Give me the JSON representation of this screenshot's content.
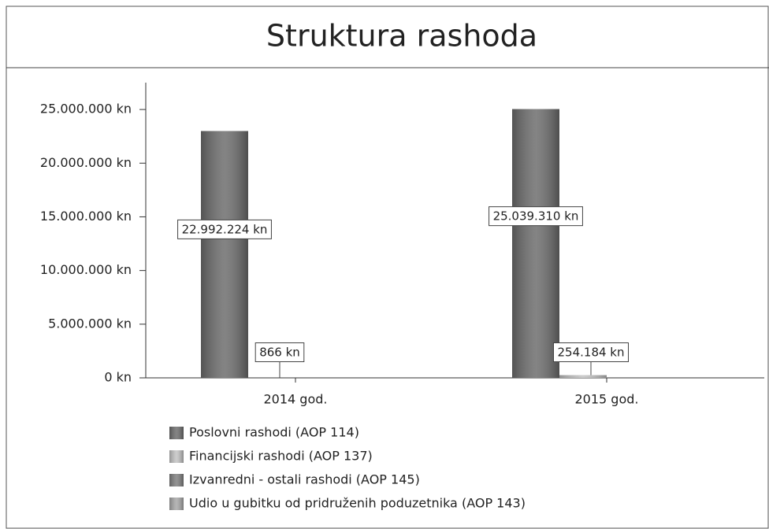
{
  "chart_data": {
    "type": "bar",
    "title": "Struktura rashoda",
    "categories": [
      "2014 god.",
      "2015 god."
    ],
    "series": [
      {
        "name": "Poslovni rashodi (AOP 114)",
        "color": "#6e6e6e",
        "values": [
          22992224,
          25039310
        ],
        "value_labels": [
          "22.992.224 kn",
          "25.039.310 kn"
        ]
      },
      {
        "name": "Financijski rashodi (AOP 137)",
        "color": "#c4c4c4",
        "values": [
          866,
          254184
        ],
        "value_labels": [
          "866 kn",
          "254.184 kn"
        ]
      },
      {
        "name": "Izvanredni - ostali rashodi (AOP 145)",
        "color": "#808080",
        "values": [
          0,
          0
        ]
      },
      {
        "name": "Udio u gubitku od pridruženih poduzetnika (AOP 143)",
        "color": "#a9a9a9",
        "values": [
          0,
          0
        ]
      }
    ],
    "ylim": [
      0,
      27500000
    ],
    "yticks": [
      {
        "value": 0,
        "label": "0 kn"
      },
      {
        "value": 5000000,
        "label": "5.000.000 kn"
      },
      {
        "value": 10000000,
        "label": "10.000.000 kn"
      },
      {
        "value": 15000000,
        "label": "15.000.000 kn"
      },
      {
        "value": 20000000,
        "label": "20.000.000 kn"
      },
      {
        "value": 25000000,
        "label": "25.000.000 kn"
      }
    ],
    "legend": "bottom"
  }
}
